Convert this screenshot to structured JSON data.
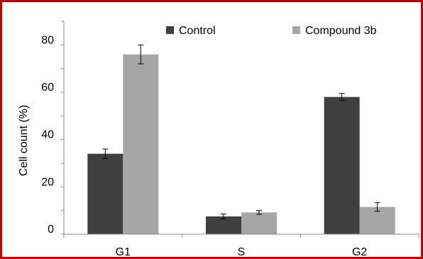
{
  "chart_data": {
    "type": "bar",
    "categories": [
      "G1",
      "S",
      "G2"
    ],
    "series": [
      {
        "name": "Control",
        "values": [
          34,
          7.5,
          58
        ],
        "errors": [
          2,
          1,
          1.5
        ],
        "color": "#3f3f3f"
      },
      {
        "name": "Compound 3b",
        "values": [
          76,
          9.2,
          11.5
        ],
        "errors": [
          4,
          0.8,
          1.8
        ],
        "color": "#a6a6a6"
      }
    ],
    "xlabel": "",
    "ylabel": "Cell count (%)",
    "ylim": [
      0,
      90
    ],
    "yticks": [
      0,
      20,
      40,
      60,
      80
    ],
    "grid": false,
    "legend_position": "top"
  },
  "colors": {
    "border": "#c00000",
    "axis": "#8c8c8c"
  }
}
